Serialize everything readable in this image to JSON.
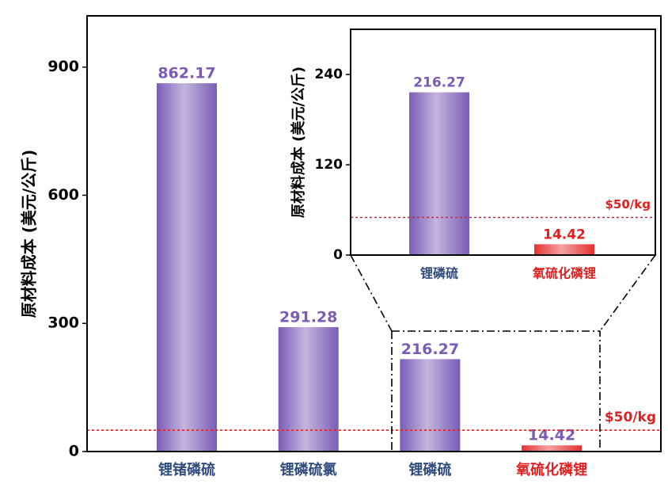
{
  "chart_data": [
    {
      "type": "bar",
      "y_label": "原材料成本 (美元/公斤)",
      "categories": [
        "锂锗磷硫",
        "锂磷硫氯",
        "锂磷硫",
        "氧硫化磷锂"
      ],
      "category_colors": [
        "#2f4b7c",
        "#2f4b7c",
        "#2f4b7c",
        "#e02020"
      ],
      "values": [
        862.17,
        291.28,
        216.27,
        14.42
      ],
      "colors": [
        "#7a5cb6",
        "#7a5cb6",
        "#7a5cb6",
        "#e53030"
      ],
      "value_label_color": "#7a5cb6",
      "ylim": [
        0,
        1020
      ],
      "yticks": [
        0,
        300,
        600,
        900
      ],
      "reference_line": {
        "value": 50,
        "label": "$50/kg",
        "color": "#e02020"
      }
    },
    {
      "type": "bar",
      "y_label": "原材料成本 (美元/公斤)",
      "categories": [
        "锂磷硫",
        "氧硫化磷锂"
      ],
      "category_colors": [
        "#2f4b7c",
        "#e02020"
      ],
      "values": [
        216.27,
        14.42
      ],
      "colors": [
        "#7a5cb6",
        "#e53030"
      ],
      "value_label_colors": [
        "#7a5cb6",
        "#e02020"
      ],
      "ylim": [
        0,
        300
      ],
      "yticks": [
        0,
        120,
        240
      ],
      "reference_line": {
        "value": 50,
        "label": "$50/kg",
        "color": "#e02020"
      }
    }
  ]
}
